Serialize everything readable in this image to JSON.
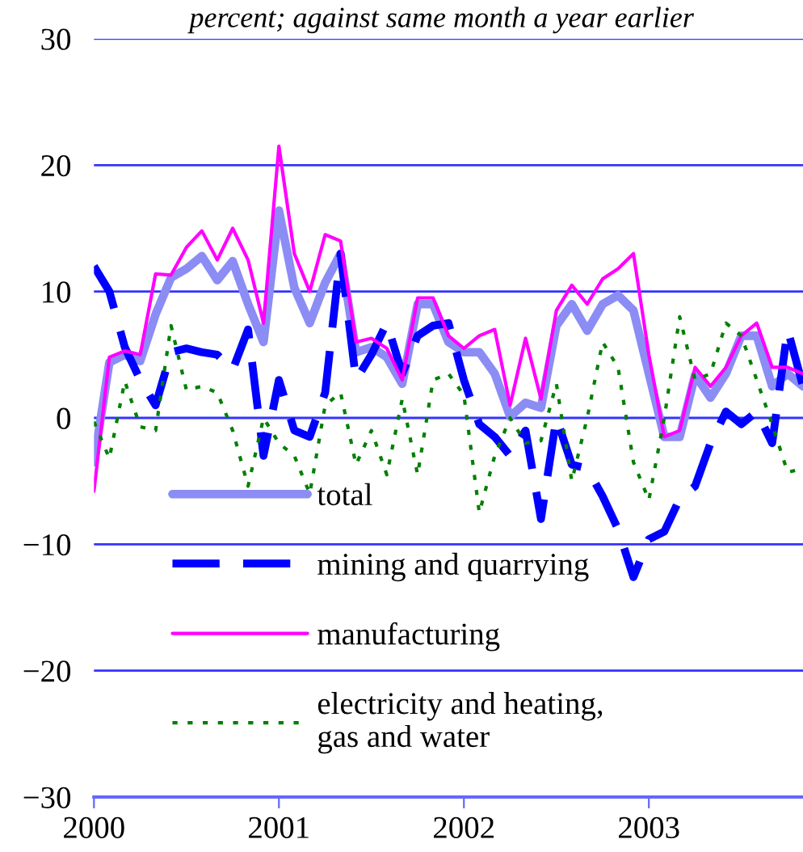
{
  "chart_data": {
    "type": "line",
    "subtitle": "percent; against same month a year earlier",
    "x": [
      2000.0,
      2000.0833,
      2000.1667,
      2000.25,
      2000.3333,
      2000.4167,
      2000.5,
      2000.5833,
      2000.6667,
      2000.75,
      2000.8333,
      2000.9167,
      2001.0,
      2001.0833,
      2001.1667,
      2001.25,
      2001.3333,
      2001.4167,
      2001.5,
      2001.5833,
      2001.6667,
      2001.75,
      2001.8333,
      2001.9167,
      2002.0,
      2002.0833,
      2002.1667,
      2002.25,
      2002.3333,
      2002.4167,
      2002.5,
      2002.5833,
      2002.6667,
      2002.75,
      2002.8333,
      2002.9167,
      2003.0,
      2003.0833,
      2003.1667,
      2003.25,
      2003.3333,
      2003.4167,
      2003.5,
      2003.5833,
      2003.6667,
      2003.75,
      2003.8333
    ],
    "series": [
      {
        "name": "total",
        "color": "#8c8cf5",
        "line_style": "solid",
        "values": [
          -3.5,
          4.4,
          5,
          4.5,
          8.2,
          11.1,
          11.8,
          12.8,
          10.9,
          12.4,
          9,
          6,
          16.4,
          10.3,
          7.5,
          10.7,
          13,
          5.2,
          5.6,
          4.8,
          2.7,
          9,
          9,
          6,
          5.2,
          5.2,
          3.5,
          0.1,
          1.2,
          0.8,
          7.3,
          9,
          6.9,
          9,
          9.7,
          8.5,
          3.5,
          -1.5,
          -1.5,
          3.4,
          1.6,
          3.5,
          6.5,
          6.5,
          2.5,
          3.5,
          2.5
        ]
      },
      {
        "name": "mining and quarrying",
        "color": "#0000ff",
        "line_style": "dashed",
        "values": [
          12,
          10,
          5.6,
          3,
          1,
          5.2,
          5.5,
          5.2,
          5,
          3.8,
          7,
          -3,
          3,
          -1,
          -1.5,
          2,
          13,
          3,
          5,
          7.5,
          3.5,
          6.5,
          7.3,
          7.5,
          3,
          -0.5,
          -1.5,
          -3,
          -1,
          -8,
          0,
          -3.7,
          -4,
          -6.2,
          -8.8,
          -12.6,
          -9.6,
          -9,
          -6.4,
          -5.4,
          -2,
          0.5,
          -0.5,
          0.5,
          -2,
          7,
          2.5
        ]
      },
      {
        "name": "manufacturing",
        "color": "#ff00ff",
        "line_style": "solid",
        "values": [
          -5.8,
          4.8,
          5.3,
          5,
          11.4,
          11.3,
          13.5,
          14.8,
          12.5,
          15,
          12.5,
          7.5,
          21.5,
          13,
          10,
          14.5,
          14,
          6,
          6.3,
          5.5,
          3,
          9.5,
          9.5,
          6.5,
          5.5,
          6.5,
          7,
          1,
          6.3,
          1.5,
          8.5,
          10.5,
          9,
          11,
          11.8,
          13,
          5,
          -1.5,
          -1,
          4,
          2.5,
          4,
          6.5,
          7.5,
          4,
          4,
          3.5
        ]
      },
      {
        "name": "electricity and heating,\ngas and water",
        "color": "#008000",
        "line_style": "dotted",
        "values": [
          -0.3,
          -3.2,
          2.9,
          -0.7,
          -1,
          7.3,
          2.2,
          2.5,
          2,
          -1,
          -5.4,
          0,
          -2,
          -3,
          -6,
          1,
          2,
          -3.7,
          -1,
          -4.5,
          1.5,
          -4.5,
          3,
          3.5,
          1.8,
          -7.5,
          -3,
          0,
          -2,
          -1.8,
          2.7,
          -5,
          0,
          6,
          4,
          -3.5,
          -6.5,
          0,
          8,
          3,
          3.5,
          7.5,
          6.5,
          3,
          -0.5,
          -4.3,
          -4
        ]
      }
    ],
    "xlim": [
      2000,
      2003.8333
    ],
    "xticks": [
      2000,
      2001,
      2002,
      2003
    ],
    "ylim": [
      -30,
      30
    ],
    "yticks": [
      -30,
      -20,
      -10,
      0,
      10,
      20,
      30
    ],
    "grid": "y",
    "legend": "bottom",
    "marker": "none"
  }
}
